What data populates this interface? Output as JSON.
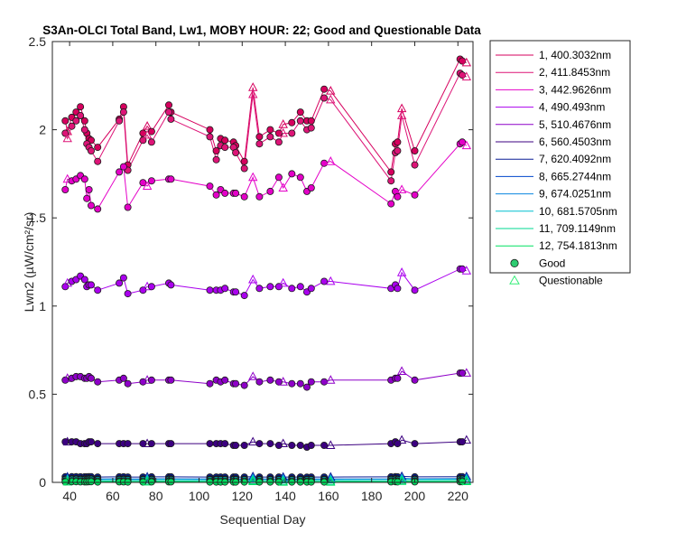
{
  "chart_data": {
    "type": "line",
    "title": "S3An-OLCI Total Band, Lw1, MOBY HOUR: 22;  Good and Questionable Data",
    "xlabel": "Sequential Day",
    "ylabel": "Lwn2 (µW/cm²/sr)",
    "xlim": [
      32,
      227
    ],
    "ylim": [
      0,
      2.5
    ],
    "xticks": [
      40,
      60,
      80,
      100,
      120,
      140,
      160,
      180,
      200,
      220
    ],
    "yticks": [
      0,
      0.5,
      1,
      1.5,
      2,
      2.5
    ],
    "x": [
      38,
      39,
      41,
      43,
      45,
      47,
      48,
      49,
      50,
      53,
      63,
      65,
      67,
      74,
      76,
      78,
      86,
      87,
      105,
      108,
      110,
      112,
      116,
      117,
      121,
      125,
      128,
      133,
      137,
      139,
      143,
      147,
      150,
      152,
      158,
      161,
      189,
      191,
      192,
      194,
      200,
      221,
      222,
      224
    ],
    "series": [
      {
        "name": "1, 400.3032nm",
        "color": "#d6005e",
        "values": [
          2.05,
          1.99,
          2.07,
          2.1,
          2.13,
          2.05,
          1.98,
          1.95,
          1.94,
          1.9,
          2.06,
          2.13,
          1.8,
          1.98,
          2.02,
          1.99,
          2.14,
          2.1,
          2.0,
          1.88,
          1.95,
          1.94,
          1.93,
          1.91,
          1.82,
          2.24,
          1.96,
          2.0,
          1.98,
          2.03,
          2.04,
          2.1,
          2.05,
          2.05,
          2.23,
          2.22,
          1.76,
          1.92,
          1.93,
          2.12,
          1.88,
          2.4,
          2.39,
          2.38
        ]
      },
      {
        "name": "2, 411.8453nm",
        "color": "#dd1477",
        "values": [
          1.98,
          1.95,
          2.02,
          2.05,
          2.08,
          2.0,
          1.92,
          1.9,
          1.88,
          1.82,
          2.05,
          2.1,
          1.77,
          1.94,
          1.97,
          1.93,
          2.1,
          2.06,
          1.96,
          1.83,
          1.91,
          1.9,
          1.9,
          1.87,
          1.78,
          2.2,
          1.92,
          1.96,
          1.93,
          1.98,
          1.98,
          2.05,
          2.0,
          2.01,
          2.18,
          2.17,
          1.71,
          1.87,
          1.88,
          2.08,
          1.8,
          2.32,
          2.31,
          2.3
        ]
      },
      {
        "name": "3, 442.9626nm",
        "color": "#e400c8",
        "values": [
          1.66,
          1.72,
          1.71,
          1.72,
          1.74,
          1.72,
          1.61,
          1.66,
          1.57,
          1.55,
          1.76,
          1.79,
          1.56,
          1.7,
          1.68,
          1.71,
          1.72,
          1.72,
          1.68,
          1.63,
          1.66,
          1.64,
          1.64,
          1.64,
          1.62,
          1.73,
          1.62,
          1.65,
          1.73,
          1.67,
          1.75,
          1.73,
          1.65,
          1.67,
          1.81,
          1.82,
          1.58,
          1.65,
          1.62,
          1.66,
          1.63,
          1.92,
          1.93,
          1.91
        ]
      },
      {
        "name": "4,  490.493nm",
        "color": "#aa00ee",
        "values": [
          1.11,
          1.13,
          1.14,
          1.15,
          1.17,
          1.15,
          1.11,
          1.12,
          1.12,
          1.09,
          1.13,
          1.16,
          1.07,
          1.09,
          1.11,
          1.11,
          1.13,
          1.12,
          1.09,
          1.09,
          1.09,
          1.1,
          1.08,
          1.08,
          1.06,
          1.15,
          1.1,
          1.11,
          1.11,
          1.13,
          1.1,
          1.11,
          1.08,
          1.1,
          1.14,
          1.14,
          1.1,
          1.12,
          1.1,
          1.19,
          1.09,
          1.21,
          1.21,
          1.2
        ]
      },
      {
        "name": "5, 510.4676nm",
        "color": "#8e00c8",
        "values": [
          0.58,
          0.59,
          0.59,
          0.6,
          0.6,
          0.59,
          0.59,
          0.6,
          0.59,
          0.57,
          0.58,
          0.59,
          0.56,
          0.57,
          0.58,
          0.58,
          0.58,
          0.58,
          0.56,
          0.58,
          0.57,
          0.58,
          0.56,
          0.56,
          0.55,
          0.6,
          0.57,
          0.58,
          0.57,
          0.57,
          0.56,
          0.56,
          0.54,
          0.57,
          0.57,
          0.58,
          0.58,
          0.59,
          0.59,
          0.63,
          0.58,
          0.62,
          0.62,
          0.62
        ]
      },
      {
        "name": "6, 560.4503nm",
        "color": "#3c0080",
        "values": [
          0.23,
          0.23,
          0.23,
          0.23,
          0.22,
          0.22,
          0.22,
          0.23,
          0.23,
          0.22,
          0.22,
          0.22,
          0.22,
          0.22,
          0.22,
          0.22,
          0.22,
          0.22,
          0.22,
          0.22,
          0.22,
          0.22,
          0.21,
          0.21,
          0.21,
          0.23,
          0.22,
          0.22,
          0.21,
          0.22,
          0.21,
          0.21,
          0.2,
          0.21,
          0.21,
          0.21,
          0.22,
          0.23,
          0.22,
          0.24,
          0.22,
          0.23,
          0.23,
          0.24
        ]
      },
      {
        "name": "7, 620.4092nm",
        "color": "#0a1f96",
        "values": [
          0.032,
          0.031,
          0.032,
          0.032,
          0.031,
          0.031,
          0.031,
          0.032,
          0.032,
          0.03,
          0.031,
          0.031,
          0.03,
          0.03,
          0.031,
          0.031,
          0.031,
          0.031,
          0.03,
          0.03,
          0.03,
          0.03,
          0.03,
          0.03,
          0.03,
          0.033,
          0.03,
          0.03,
          0.03,
          0.03,
          0.03,
          0.03,
          0.029,
          0.03,
          0.03,
          0.03,
          0.031,
          0.032,
          0.031,
          0.034,
          0.031,
          0.032,
          0.032,
          0.033
        ]
      },
      {
        "name": "8, 665.2744nm",
        "color": "#0044cc",
        "values": [
          0.02,
          0.02,
          0.021,
          0.021,
          0.02,
          0.02,
          0.02,
          0.021,
          0.021,
          0.019,
          0.02,
          0.02,
          0.019,
          0.019,
          0.02,
          0.02,
          0.02,
          0.02,
          0.019,
          0.019,
          0.019,
          0.019,
          0.019,
          0.019,
          0.019,
          0.022,
          0.019,
          0.019,
          0.019,
          0.019,
          0.019,
          0.019,
          0.018,
          0.019,
          0.019,
          0.019,
          0.02,
          0.021,
          0.02,
          0.023,
          0.02,
          0.021,
          0.021,
          0.022
        ]
      },
      {
        "name": "9, 674.0251nm",
        "color": "#0a84e0",
        "values": [
          0.018,
          0.018,
          0.019,
          0.019,
          0.018,
          0.018,
          0.018,
          0.019,
          0.019,
          0.017,
          0.018,
          0.018,
          0.017,
          0.017,
          0.018,
          0.018,
          0.018,
          0.018,
          0.017,
          0.017,
          0.017,
          0.017,
          0.017,
          0.017,
          0.017,
          0.02,
          0.017,
          0.017,
          0.017,
          0.017,
          0.017,
          0.017,
          0.016,
          0.017,
          0.017,
          0.017,
          0.018,
          0.019,
          0.018,
          0.021,
          0.018,
          0.019,
          0.019,
          0.02
        ]
      },
      {
        "name": "10, 681.5705nm",
        "color": "#00c0d0",
        "values": [
          0.016,
          0.016,
          0.017,
          0.017,
          0.016,
          0.016,
          0.016,
          0.017,
          0.017,
          0.015,
          0.016,
          0.016,
          0.015,
          0.015,
          0.016,
          0.016,
          0.016,
          0.016,
          0.015,
          0.015,
          0.015,
          0.015,
          0.015,
          0.015,
          0.015,
          0.018,
          0.015,
          0.015,
          0.015,
          0.015,
          0.015,
          0.015,
          0.014,
          0.015,
          0.015,
          0.015,
          0.016,
          0.017,
          0.016,
          0.019,
          0.016,
          0.017,
          0.017,
          0.018
        ]
      },
      {
        "name": "11, 709.1149nm",
        "color": "#00d890",
        "values": [
          0.008,
          0.008,
          0.009,
          0.009,
          0.008,
          0.008,
          0.008,
          0.009,
          0.009,
          0.007,
          0.008,
          0.008,
          0.007,
          0.007,
          0.008,
          0.008,
          0.008,
          0.008,
          0.007,
          0.007,
          0.007,
          0.007,
          0.007,
          0.007,
          0.007,
          0.01,
          0.007,
          0.007,
          0.007,
          0.007,
          0.007,
          0.007,
          0.006,
          0.007,
          0.007,
          0.007,
          0.008,
          0.009,
          0.008,
          0.011,
          0.008,
          0.009,
          0.009,
          0.01
        ]
      },
      {
        "name": "12, 754.1813nm",
        "color": "#00e060",
        "values": [
          0.003,
          0.003,
          0.004,
          0.004,
          0.003,
          0.003,
          0.003,
          0.004,
          0.004,
          0.002,
          0.003,
          0.003,
          0.002,
          0.002,
          0.003,
          0.003,
          0.003,
          0.003,
          0.002,
          0.002,
          0.002,
          0.002,
          0.002,
          0.002,
          0.002,
          0.005,
          0.002,
          0.002,
          0.002,
          0.002,
          0.002,
          0.002,
          0.002,
          0.002,
          0.002,
          0.002,
          0.003,
          0.004,
          0.003,
          0.006,
          0.003,
          0.004,
          0.004,
          0.005
        ]
      }
    ],
    "quality": [
      "Good",
      "Questionable",
      "Good",
      "Good",
      "Good",
      "Good",
      "Good",
      "Good",
      "Good",
      "Good",
      "Good",
      "Good",
      "Good",
      "Good",
      "Questionable",
      "Good",
      "Good",
      "Good",
      "Good",
      "Good",
      "Good",
      "Good",
      "Good",
      "Good",
      "Good",
      "Questionable",
      "Good",
      "Good",
      "Good",
      "Questionable",
      "Good",
      "Good",
      "Good",
      "Good",
      "Good",
      "Questionable",
      "Good",
      "Good",
      "Good",
      "Questionable",
      "Good",
      "Good",
      "Good",
      "Questionable"
    ],
    "legend": {
      "placement": "outside-right-top",
      "marker_entries": [
        {
          "label": "Good",
          "marker": "circle",
          "fill": "#2ecc71"
        },
        {
          "label": "Questionable",
          "marker": "triangle",
          "fill": "none",
          "stroke": "#33ee77"
        }
      ]
    },
    "grid": false
  }
}
